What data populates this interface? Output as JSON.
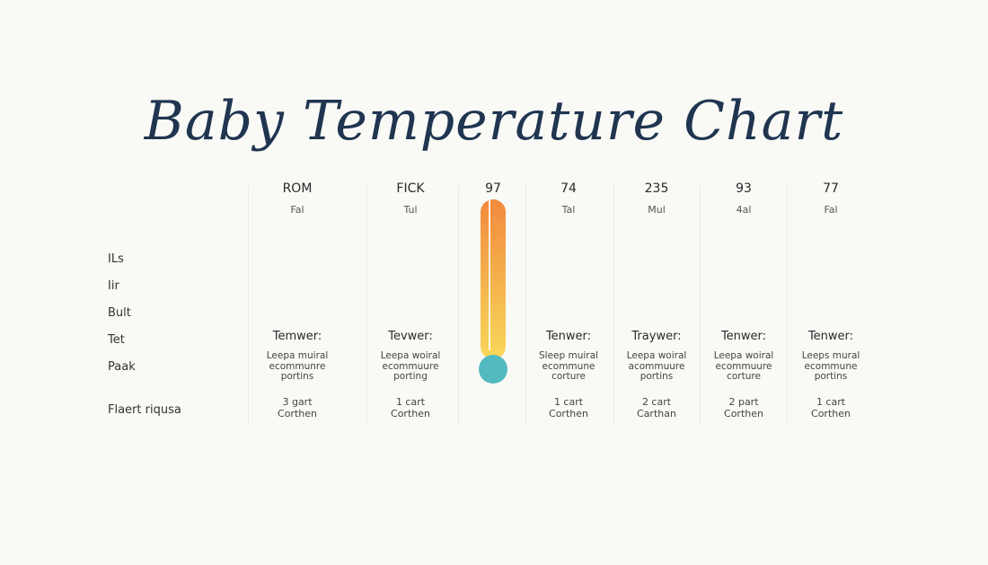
{
  "chart_data": {
    "type": "table",
    "title": "Baby Temperature Chart",
    "row_labels": [
      "ILs",
      "Iir",
      "Bult",
      "Tet",
      "Paak",
      "Flaert riqusa"
    ],
    "columns": [
      {
        "header": "ROM",
        "sub": "Fal",
        "label": "Temwer:",
        "desc": [
          "Leepa muiral",
          "ecommunre",
          "portins"
        ],
        "count": [
          "3 gart",
          "Corthen"
        ]
      },
      {
        "header": "FICK",
        "sub": "Tul",
        "label": "Tevwer:",
        "desc": [
          "Leepa woiral",
          "ecommuure",
          "porting"
        ],
        "count": [
          "1 cart",
          "Corthen"
        ]
      },
      {
        "header": "74",
        "sub": "Tal",
        "label": "Tenwer:",
        "desc": [
          "Sleep muiral",
          "ecommune",
          "corture"
        ],
        "count": [
          "1 cart",
          "Corthen"
        ]
      },
      {
        "header": "235",
        "sub": "Mul",
        "label": "Traywer:",
        "desc": [
          "Leepa woiral",
          "acommuure",
          "portins"
        ],
        "count": [
          "2 cart",
          "Carthan"
        ]
      },
      {
        "header": "93",
        "sub": "4al",
        "label": "Tenwer:",
        "desc": [
          "Leepa woiral",
          "ecommuure",
          "corture"
        ],
        "count": [
          "2 part",
          "Corthen"
        ]
      },
      {
        "header": "77",
        "sub": "Fal",
        "label": "Tenwer:",
        "desc": [
          "Leeps mural",
          "ecommune",
          "portins"
        ],
        "count": [
          "1 cart",
          "Corthen"
        ]
      }
    ],
    "thermometer": {
      "value": "97",
      "fill_fraction": 1.0,
      "colors": {
        "top": "#f28a3e",
        "bottom": "#f8d85a",
        "bulb": "#52b9bf"
      }
    }
  }
}
